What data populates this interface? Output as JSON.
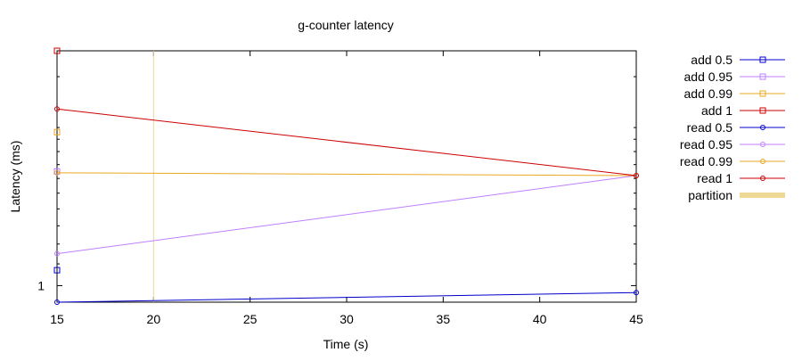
{
  "chart_data": {
    "type": "line",
    "title": "g-counter latency",
    "xlabel": "Time (s)",
    "ylabel": "Latency (ms)",
    "xlim": [
      15,
      45
    ],
    "ylim": [
      0.93,
      2.8
    ],
    "y_scale": "log",
    "x_ticks": [
      15,
      20,
      25,
      30,
      35,
      40,
      45
    ],
    "y_ticks": [
      1
    ],
    "legend_position": "right",
    "series": [
      {
        "name": "add 0.5",
        "color": "#0000cc",
        "marker": "square",
        "x": [
          15
        ],
        "y": [
          1.07
        ]
      },
      {
        "name": "add 0.95",
        "color": "#bf7fff",
        "marker": "square",
        "x": [
          15
        ],
        "y": [
          1.65
        ]
      },
      {
        "name": "add 0.99",
        "color": "#e8a820",
        "marker": "square",
        "x": [
          15
        ],
        "y": [
          1.96
        ]
      },
      {
        "name": "add 1",
        "color": "#cc0000",
        "marker": "square",
        "x": [
          15
        ],
        "y": [
          2.8
        ]
      },
      {
        "name": "read 0.5",
        "color": "#0000cc",
        "marker": "circle",
        "x": [
          15,
          45
        ],
        "y": [
          0.93,
          0.97
        ]
      },
      {
        "name": "read 0.95",
        "color": "#bf7fff",
        "marker": "circle",
        "x": [
          15,
          45
        ],
        "y": [
          1.15,
          1.62
        ]
      },
      {
        "name": "read 0.99",
        "color": "#e8a820",
        "marker": "circle",
        "x": [
          15,
          45
        ],
        "y": [
          1.64,
          1.62
        ]
      },
      {
        "name": "read 1",
        "color": "#cc0000",
        "marker": "circle",
        "x": [
          15,
          45
        ],
        "y": [
          2.17,
          1.62
        ]
      }
    ],
    "partition": {
      "name": "partition",
      "color": "#eed895",
      "x": [
        20
      ]
    }
  }
}
